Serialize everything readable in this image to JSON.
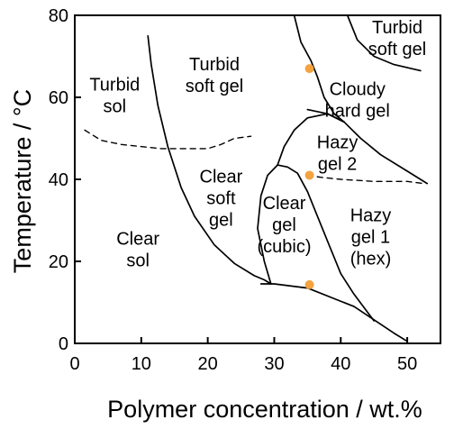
{
  "chart_data": {
    "type": "phase-diagram",
    "title": "",
    "xlabel": "Polymer concentration / wt.%",
    "ylabel": "Temperature / °C",
    "xlim": [
      0,
      55
    ],
    "ylim": [
      0,
      80
    ],
    "xticks": [
      0,
      10,
      20,
      30,
      40,
      50
    ],
    "yticks": [
      0,
      20,
      40,
      60,
      80
    ],
    "colors": {
      "axis": "#000000",
      "boundary": "#000000",
      "point": "#f4a340"
    },
    "regions": [
      {
        "id": "turbid-sol",
        "lines": [
          "Turbid",
          "sol"
        ],
        "x": 6,
        "y": 60.5
      },
      {
        "id": "turbid-soft-gel-left",
        "lines": [
          "Turbid",
          "soft gel"
        ],
        "x": 21,
        "y": 65.5
      },
      {
        "id": "turbid-soft-gel-right",
        "lines": [
          "Turbid",
          "soft gel"
        ],
        "x": 48.5,
        "y": 74.5
      },
      {
        "id": "cloudy-hard-gel",
        "lines": [
          "Cloudy",
          "hard gel"
        ],
        "x": 42.5,
        "y": 59.5
      },
      {
        "id": "hazy-gel-2",
        "lines": [
          "Hazy",
          "gel 2"
        ],
        "x": 39.5,
        "y": 46.5
      },
      {
        "id": "clear-soft-gel",
        "lines": [
          "Clear",
          "soft",
          "gel"
        ],
        "x": 22,
        "y": 35.5
      },
      {
        "id": "clear-gel-cubic",
        "lines": [
          "Clear",
          "gel",
          "(cubic)"
        ],
        "x": 31.5,
        "y": 29
      },
      {
        "id": "hazy-gel-1-hex",
        "lines": [
          "Hazy",
          "gel 1",
          "(hex)"
        ],
        "x": 44.5,
        "y": 26
      },
      {
        "id": "clear-sol",
        "lines": [
          "Clear",
          "sol"
        ],
        "x": 9.5,
        "y": 23
      }
    ],
    "boundaries": [
      {
        "id": "sol-gel-boundary",
        "style": "solid",
        "points": [
          [
            11,
            75
          ],
          [
            11.5,
            68
          ],
          [
            12.5,
            58
          ],
          [
            14,
            48
          ],
          [
            16,
            38
          ],
          [
            18,
            31
          ],
          [
            21,
            24
          ],
          [
            24,
            19.5
          ],
          [
            27,
            16.5
          ],
          [
            28.5,
            15.5
          ],
          [
            29.5,
            14.5
          ],
          [
            30,
            14.5
          ],
          [
            28,
            14.5
          ],
          [
            30,
            14.5
          ],
          [
            35,
            13.5
          ],
          [
            42,
            9
          ],
          [
            48,
            2.5
          ],
          [
            50,
            0.5
          ]
        ]
      },
      {
        "id": "turbid-sol-dashed",
        "style": "dashed",
        "points": [
          [
            1.5,
            52
          ],
          [
            4,
            49.5
          ],
          [
            7,
            48.5
          ],
          [
            13,
            47.5
          ],
          [
            18,
            47.5
          ],
          [
            20,
            47.5
          ],
          [
            22,
            48.5
          ],
          [
            24,
            50
          ],
          [
            26.5,
            50.5
          ]
        ]
      },
      {
        "id": "cubic-gel-boundary",
        "style": "solid",
        "points": [
          [
            29.5,
            14.5
          ],
          [
            28.5,
            20
          ],
          [
            27.5,
            28
          ],
          [
            28,
            36
          ],
          [
            29,
            41
          ],
          [
            30.5,
            43.5
          ],
          [
            32,
            43
          ],
          [
            33.5,
            41.5
          ],
          [
            35,
            37
          ],
          [
            36.5,
            31
          ],
          [
            38,
            25
          ],
          [
            40,
            17
          ],
          [
            42,
            12
          ],
          [
            45,
            5.5
          ]
        ]
      },
      {
        "id": "hazy-gel-2-left",
        "style": "solid",
        "points": [
          [
            30.5,
            43.5
          ],
          [
            31.5,
            48
          ],
          [
            33,
            52
          ],
          [
            35,
            55
          ],
          [
            38,
            56
          ],
          [
            40.5,
            54
          ]
        ]
      },
      {
        "id": "hazy-gel-2-top",
        "style": "solid",
        "points": [
          [
            35,
            57
          ],
          [
            38,
            56
          ],
          [
            40.5,
            54
          ],
          [
            43,
            50
          ],
          [
            46,
            46
          ],
          [
            50,
            42
          ],
          [
            53,
            39
          ]
        ]
      },
      {
        "id": "hazy-gel-2-bottom-dashed",
        "style": "dashed",
        "points": [
          [
            35,
            41
          ],
          [
            37,
            40.5
          ],
          [
            40,
            40
          ],
          [
            45,
            39.5
          ],
          [
            50,
            39.5
          ],
          [
            52.5,
            39
          ]
        ]
      },
      {
        "id": "cloudy-hard-gel-left",
        "style": "solid",
        "points": [
          [
            40.5,
            54
          ],
          [
            39,
            56
          ],
          [
            37.5,
            60
          ],
          [
            36.5,
            65
          ],
          [
            35.5,
            69
          ],
          [
            34,
            73.5
          ],
          [
            33,
            80
          ]
        ]
      },
      {
        "id": "turbid-soft-gel-right-boundary",
        "style": "solid",
        "points": [
          [
            41,
            80
          ],
          [
            42.5,
            74
          ],
          [
            45,
            70
          ],
          [
            48,
            68
          ],
          [
            52,
            66.5
          ]
        ]
      }
    ],
    "points": [
      {
        "x": 35.3,
        "y": 67
      },
      {
        "x": 35.3,
        "y": 41
      },
      {
        "x": 35.3,
        "y": 14.3
      }
    ]
  }
}
